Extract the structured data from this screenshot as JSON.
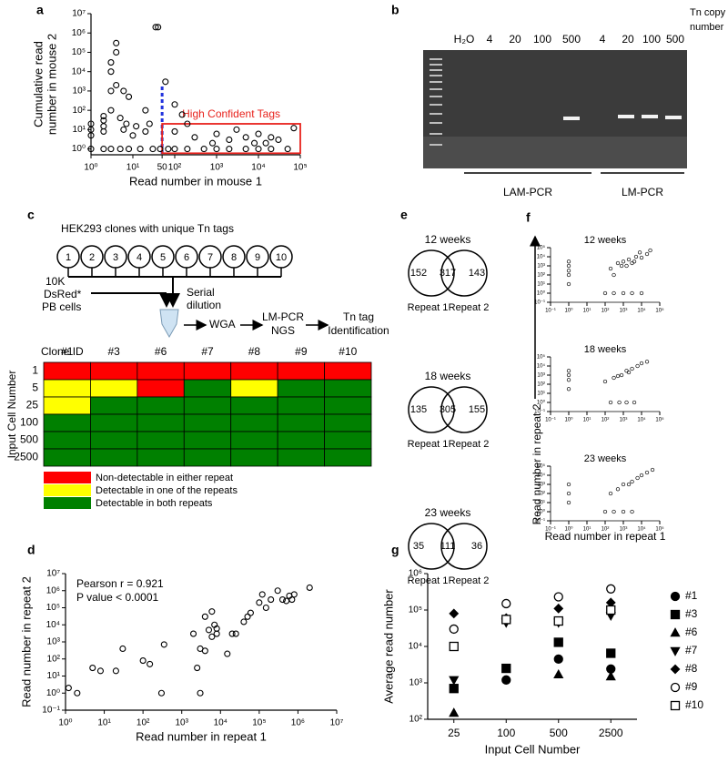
{
  "chart_data": [
    {
      "type": "scatter",
      "panel": "a",
      "xlabel": "Read number in mouse 1",
      "ylabel": [
        "Cumulative read",
        "number in mouse 2"
      ],
      "log_x": true,
      "log_y": true,
      "xlim": [
        1,
        100000
      ],
      "ylim": [
        0.5,
        10000000
      ],
      "xticks": [
        {
          "value": 1,
          "label": "10⁰"
        },
        {
          "value": 10,
          "label": "10¹"
        },
        50,
        {
          "value": 100,
          "label": "10²"
        },
        {
          "value": 1000,
          "label": "10³"
        },
        {
          "value": 10000,
          "label": "10⁴"
        },
        {
          "value": 100000,
          "label": "10⁵"
        }
      ],
      "yticks": [
        {
          "value": 1,
          "label": "10⁰"
        },
        {
          "value": 10,
          "label": "10¹"
        },
        {
          "value": 100,
          "label": "10²"
        },
        {
          "value": 1000,
          "label": "10³"
        },
        {
          "value": 10000,
          "label": "10⁴"
        },
        {
          "value": 100000,
          "label": "10⁵"
        },
        {
          "value": 1000000,
          "label": "10⁶"
        },
        {
          "value": 10000000,
          "label": "10⁷"
        }
      ],
      "threshold_x": 50,
      "threshold_color": "#2233dd",
      "annotation": {
        "text": "High Confident Tags",
        "color": "#e8221c",
        "x": [
          50,
          100000
        ],
        "y": [
          0.6,
          20
        ]
      },
      "x": [
        1,
        1,
        1,
        1,
        2,
        2,
        2,
        2,
        3,
        3,
        3,
        3,
        3,
        4,
        4,
        4,
        5,
        5,
        6,
        7,
        8,
        10,
        12,
        15,
        20,
        25,
        30,
        35,
        40,
        45,
        6,
        8,
        2,
        70,
        100,
        100,
        200,
        200,
        300,
        500,
        800,
        1000,
        1000,
        2000,
        2000,
        3000,
        5000,
        5000,
        8000,
        10000,
        10000,
        15000,
        20000,
        20000,
        30000,
        50000,
        70000,
        60,
        100,
        20,
        150
      ],
      "y": [
        1,
        5,
        10,
        20,
        1,
        8,
        15,
        30,
        1,
        100,
        1000,
        10000,
        30000,
        2000,
        100000,
        300000,
        1,
        40,
        10,
        20,
        1,
        5,
        15,
        1,
        8,
        20,
        1,
        2000000,
        2000000,
        1,
        1000,
        500,
        50,
        1,
        1,
        8,
        1,
        20,
        4,
        1,
        2,
        1,
        6,
        1,
        3,
        10,
        1,
        4,
        2,
        1,
        6,
        2,
        1,
        4,
        3,
        1,
        12,
        3000,
        200,
        100,
        60
      ]
    },
    {
      "type": "scatter",
      "panel": "d",
      "xlabel": "Read number in repeat 1",
      "ylabel": "Read number in repeat 2",
      "log_x": true,
      "log_y": true,
      "xlim": [
        1,
        10000000
      ],
      "ylim": [
        0.1,
        10000000
      ],
      "xticks": [
        {
          "value": 1,
          "label": "10⁰"
        },
        {
          "value": 10,
          "label": "10¹"
        },
        {
          "value": 100,
          "label": "10²"
        },
        {
          "value": 1000,
          "label": "10³"
        },
        {
          "value": 10000,
          "label": "10⁴"
        },
        {
          "value": 100000,
          "label": "10⁵"
        },
        {
          "value": 1000000,
          "label": "10⁶"
        },
        {
          "value": 10000000,
          "label": "10⁷"
        }
      ],
      "yticks": [
        {
          "value": 0.1,
          "label": "10⁻¹"
        },
        {
          "value": 1,
          "label": "10⁰"
        },
        {
          "value": 10,
          "label": "10¹"
        },
        {
          "value": 100,
          "label": "10²"
        },
        {
          "value": 1000,
          "label": "10³"
        },
        {
          "value": 10000,
          "label": "10⁴"
        },
        {
          "value": 100000,
          "label": "10⁵"
        },
        {
          "value": 1000000,
          "label": "10⁶"
        },
        {
          "value": 10000000,
          "label": "10⁷"
        }
      ],
      "annotations": [
        "Pearson r = 0.921",
        "P value < 0.0001"
      ],
      "x": [
        1.2,
        2,
        5,
        8,
        20,
        30,
        100,
        150,
        300,
        350,
        2000,
        2500,
        3000,
        3000,
        4000,
        4000,
        5000,
        6000,
        7000,
        8000,
        6000,
        15000,
        20000,
        25000,
        40000,
        60000,
        100000,
        120000,
        150000,
        200000,
        300000,
        400000,
        500000,
        600000,
        700000,
        800000,
        2000000,
        50000,
        8000
      ],
      "y": [
        2,
        1,
        30,
        20,
        20,
        400,
        80,
        50,
        1,
        700,
        3000,
        30,
        1,
        400,
        300,
        30000,
        5000,
        2000,
        10000,
        3000,
        60000,
        200,
        3000,
        3000,
        15000,
        50000,
        200000,
        600000,
        100000,
        300000,
        1000000,
        300000,
        250000,
        500000,
        300000,
        600000,
        1500000,
        30000,
        6000
      ]
    },
    {
      "type": "scatter",
      "title": "12 weeks",
      "log_x": true,
      "log_y": true,
      "xlim": [
        0.1,
        100000
      ],
      "ylim": [
        0.1,
        100000
      ],
      "xticks": [
        {
          "value": 0.1,
          "label": "10⁻¹"
        },
        {
          "value": 1,
          "label": "10⁰"
        },
        {
          "value": 10,
          "label": "10¹"
        },
        {
          "value": 100,
          "label": "10²"
        },
        {
          "value": 1000,
          "label": "10³"
        },
        {
          "value": 10000,
          "label": "10⁴"
        },
        {
          "value": 100000,
          "label": "10⁵"
        }
      ],
      "yticks": [
        {
          "value": 0.1,
          "label": "10⁻¹"
        },
        {
          "value": 1,
          "label": "10⁰"
        },
        {
          "value": 10,
          "label": "10¹"
        },
        {
          "value": 100,
          "label": "10²"
        },
        {
          "value": 1000,
          "label": "10³"
        },
        {
          "value": 10000,
          "label": "10⁴"
        },
        {
          "value": 100000,
          "label": "10⁵"
        }
      ],
      "x": [
        1,
        1,
        1,
        1,
        1,
        200,
        500,
        1000,
        2000,
        3000,
        5000,
        10000,
        20000,
        300,
        800,
        1500,
        4000,
        8000,
        30000,
        100,
        300,
        1000,
        3000,
        10000
      ],
      "y": [
        10,
        100,
        300,
        1000,
        3000,
        500,
        2000,
        3000,
        5000,
        2000,
        10000,
        8000,
        20000,
        100,
        1000,
        1000,
        3000,
        30000,
        50000,
        1,
        1,
        1,
        1,
        1
      ]
    },
    {
      "type": "scatter",
      "title": "18 weeks",
      "log_x": true,
      "log_y": true,
      "xlim": [
        0.1,
        100000
      ],
      "ylim": [
        0.1,
        100000
      ],
      "xticks": [
        {
          "value": 0.1,
          "label": "10⁻¹"
        },
        {
          "value": 1,
          "label": "10⁰"
        },
        {
          "value": 10,
          "label": "10¹"
        },
        {
          "value": 100,
          "label": "10²"
        },
        {
          "value": 1000,
          "label": "10³"
        },
        {
          "value": 10000,
          "label": "10⁴"
        },
        {
          "value": 100000,
          "label": "10⁵"
        }
      ],
      "yticks": [
        {
          "value": 0.1,
          "label": "10⁻¹"
        },
        {
          "value": 1,
          "label": "10⁰"
        },
        {
          "value": 10,
          "label": "10¹"
        },
        {
          "value": 100,
          "label": "10²"
        },
        {
          "value": 1000,
          "label": "10³"
        },
        {
          "value": 10000,
          "label": "10⁴"
        },
        {
          "value": 100000,
          "label": "10⁵"
        }
      ],
      "x": [
        1,
        1,
        1,
        1,
        100,
        300,
        800,
        1500,
        3000,
        6000,
        10000,
        20000,
        500,
        2000,
        200,
        600,
        1500,
        4000
      ],
      "y": [
        30,
        300,
        1000,
        3000,
        200,
        500,
        1000,
        3000,
        5000,
        10000,
        20000,
        30000,
        800,
        2000,
        1,
        1,
        1,
        1
      ]
    },
    {
      "type": "scatter",
      "title": "23 weeks",
      "log_x": true,
      "log_y": true,
      "xlim": [
        0.1,
        100000
      ],
      "ylim": [
        0.1,
        100000
      ],
      "xticks": [
        {
          "value": 0.1,
          "label": "10⁻¹"
        },
        {
          "value": 1,
          "label": "10⁰"
        },
        {
          "value": 10,
          "label": "10¹"
        },
        {
          "value": 100,
          "label": "10²"
        },
        {
          "value": 1000,
          "label": "10³"
        },
        {
          "value": 10000,
          "label": "10⁴"
        },
        {
          "value": 100000,
          "label": "10⁵"
        }
      ],
      "yticks": [
        {
          "value": 0.1,
          "label": "10⁻¹"
        },
        {
          "value": 1,
          "label": "10⁰"
        },
        {
          "value": 10,
          "label": "10¹"
        },
        {
          "value": 100,
          "label": "10²"
        },
        {
          "value": 1000,
          "label": "10³"
        },
        {
          "value": 10000,
          "label": "10⁴"
        },
        {
          "value": 100000,
          "label": "10⁵"
        }
      ],
      "x": [
        1,
        1,
        1,
        200,
        500,
        1000,
        3000,
        6000,
        10000,
        20000,
        40000,
        2000,
        100,
        300,
        1000,
        3000
      ],
      "y": [
        10,
        100,
        1000,
        100,
        300,
        1000,
        2000,
        5000,
        10000,
        20000,
        40000,
        1000,
        1,
        1,
        1,
        1
      ]
    },
    {
      "type": "dot",
      "panel": "g",
      "xlabel": "Input Cell Number",
      "ylabel": "Average read number",
      "log_y": true,
      "categories": [
        "25",
        "100",
        "500",
        "2500"
      ],
      "ylim": [
        100,
        1000000
      ],
      "yticks": [
        {
          "value": 100,
          "label": "10²"
        },
        {
          "value": 1000,
          "label": "10³"
        },
        {
          "value": 10000,
          "label": "10⁴"
        },
        {
          "value": 100000,
          "label": "10⁵"
        },
        {
          "value": 1000000,
          "label": "10⁶"
        }
      ],
      "series": [
        {
          "name": "#1",
          "marker": "filled-circle",
          "values": [
            null,
            1200,
            4500,
            2400
          ]
        },
        {
          "name": "#3",
          "marker": "filled-square",
          "values": [
            700,
            2500,
            13000,
            6500
          ]
        },
        {
          "name": "#6",
          "marker": "filled-triangle-up",
          "values": [
            150,
            null,
            1700,
            1500
          ]
        },
        {
          "name": "#7",
          "marker": "filled-triangle-down",
          "values": [
            1200,
            45000,
            45000,
            70000
          ]
        },
        {
          "name": "#8",
          "marker": "filled-diamond",
          "values": [
            80000,
            60000,
            110000,
            160000
          ]
        },
        {
          "name": "#9",
          "marker": "open-circle",
          "values": [
            30000,
            150000,
            230000,
            380000
          ]
        },
        {
          "name": "#10",
          "marker": "open-square",
          "values": [
            10000,
            55000,
            50000,
            100000
          ]
        }
      ]
    }
  ],
  "gel": {
    "panel": "b",
    "lanes": [
      "H₂O",
      "4",
      "20",
      "100",
      "500",
      "4",
      "20",
      "100",
      "500"
    ],
    "side_label": [
      "Tn copy",
      "number"
    ],
    "groups": [
      "LAM-PCR",
      "LM-PCR"
    ]
  },
  "diagram": {
    "panel": "c",
    "header": "HEK293 clones with unique Tn tags",
    "clones": [
      "1",
      "2",
      "3",
      "4",
      "5",
      "6",
      "7",
      "8",
      "9",
      "10"
    ],
    "cells_label": [
      "10K",
      "DsRed*",
      "PB cells"
    ],
    "dilution": [
      "Serial",
      "dilution"
    ],
    "step1": "WGA",
    "step2": [
      "LM-PCR",
      "NGS"
    ],
    "step3": [
      "Tn tag",
      "Identification"
    ]
  },
  "heatmap": {
    "column_header": "Clone ID",
    "columns": [
      "#1",
      "#3",
      "#6",
      "#7",
      "#8",
      "#9",
      "#10"
    ],
    "row_header": "Input Cell Number",
    "rows": [
      "1",
      "5",
      "25",
      "100",
      "500",
      "2500"
    ],
    "cells": [
      [
        0,
        0,
        0,
        0,
        0,
        0,
        0
      ],
      [
        1,
        1,
        0,
        2,
        1,
        2,
        2
      ],
      [
        1,
        2,
        2,
        2,
        2,
        2,
        2
      ],
      [
        2,
        2,
        2,
        2,
        2,
        2,
        2
      ],
      [
        2,
        2,
        2,
        2,
        2,
        2,
        2
      ],
      [
        2,
        2,
        2,
        2,
        2,
        2,
        2
      ]
    ],
    "legend": [
      {
        "label": "Non-detectable in either repeat",
        "color": "#ff0000"
      },
      {
        "label": "Detectable in one of the repeats",
        "color": "#ffff00"
      },
      {
        "label": "Detectable in both repeats",
        "color": "#008000"
      }
    ]
  },
  "venn": {
    "panel": "e",
    "diagrams": [
      {
        "title": "12 weeks",
        "left": 152,
        "both": 317,
        "right": 143,
        "set_labels": [
          "Repeat 1",
          "Repeat 2"
        ]
      },
      {
        "title": "18 weeks",
        "left": 135,
        "both": 305,
        "right": 155,
        "set_labels": [
          "Repeat 1",
          "Repeat 2"
        ]
      },
      {
        "title": "23 weeks",
        "left": 35,
        "both": 111,
        "right": 36,
        "set_labels": [
          "Repeat 1",
          "Repeat 2"
        ]
      }
    ]
  },
  "panel_f": {
    "panel": "f",
    "ylabel": "Read number in repeat 2",
    "xlabel": "Read number in repeat 1"
  }
}
